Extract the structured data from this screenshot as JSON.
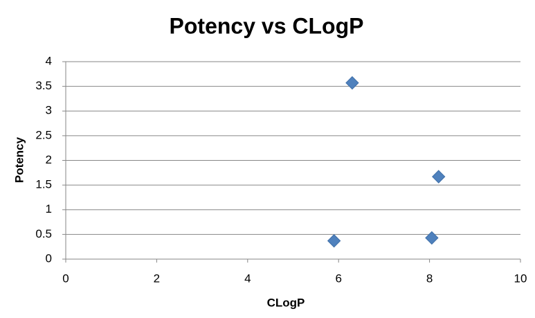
{
  "chart_data": {
    "type": "scatter",
    "title": "Potency vs CLogP",
    "x_label": "CLogP",
    "y_label": "Potency",
    "series": [
      {
        "name": "Potency",
        "color": "#4f81bd",
        "x": [
          6.3,
          8.2,
          5.9,
          8.05
        ],
        "values": [
          3.57,
          1.67,
          0.37,
          0.43
        ]
      }
    ],
    "xlim": [
      0,
      10
    ],
    "xticks": [
      0,
      2,
      4,
      6,
      8,
      10
    ],
    "ylim": [
      0,
      4
    ],
    "yticks": [
      0,
      0.5,
      1,
      1.5,
      2,
      2.5,
      3,
      3.5,
      4
    ],
    "grid": true
  }
}
